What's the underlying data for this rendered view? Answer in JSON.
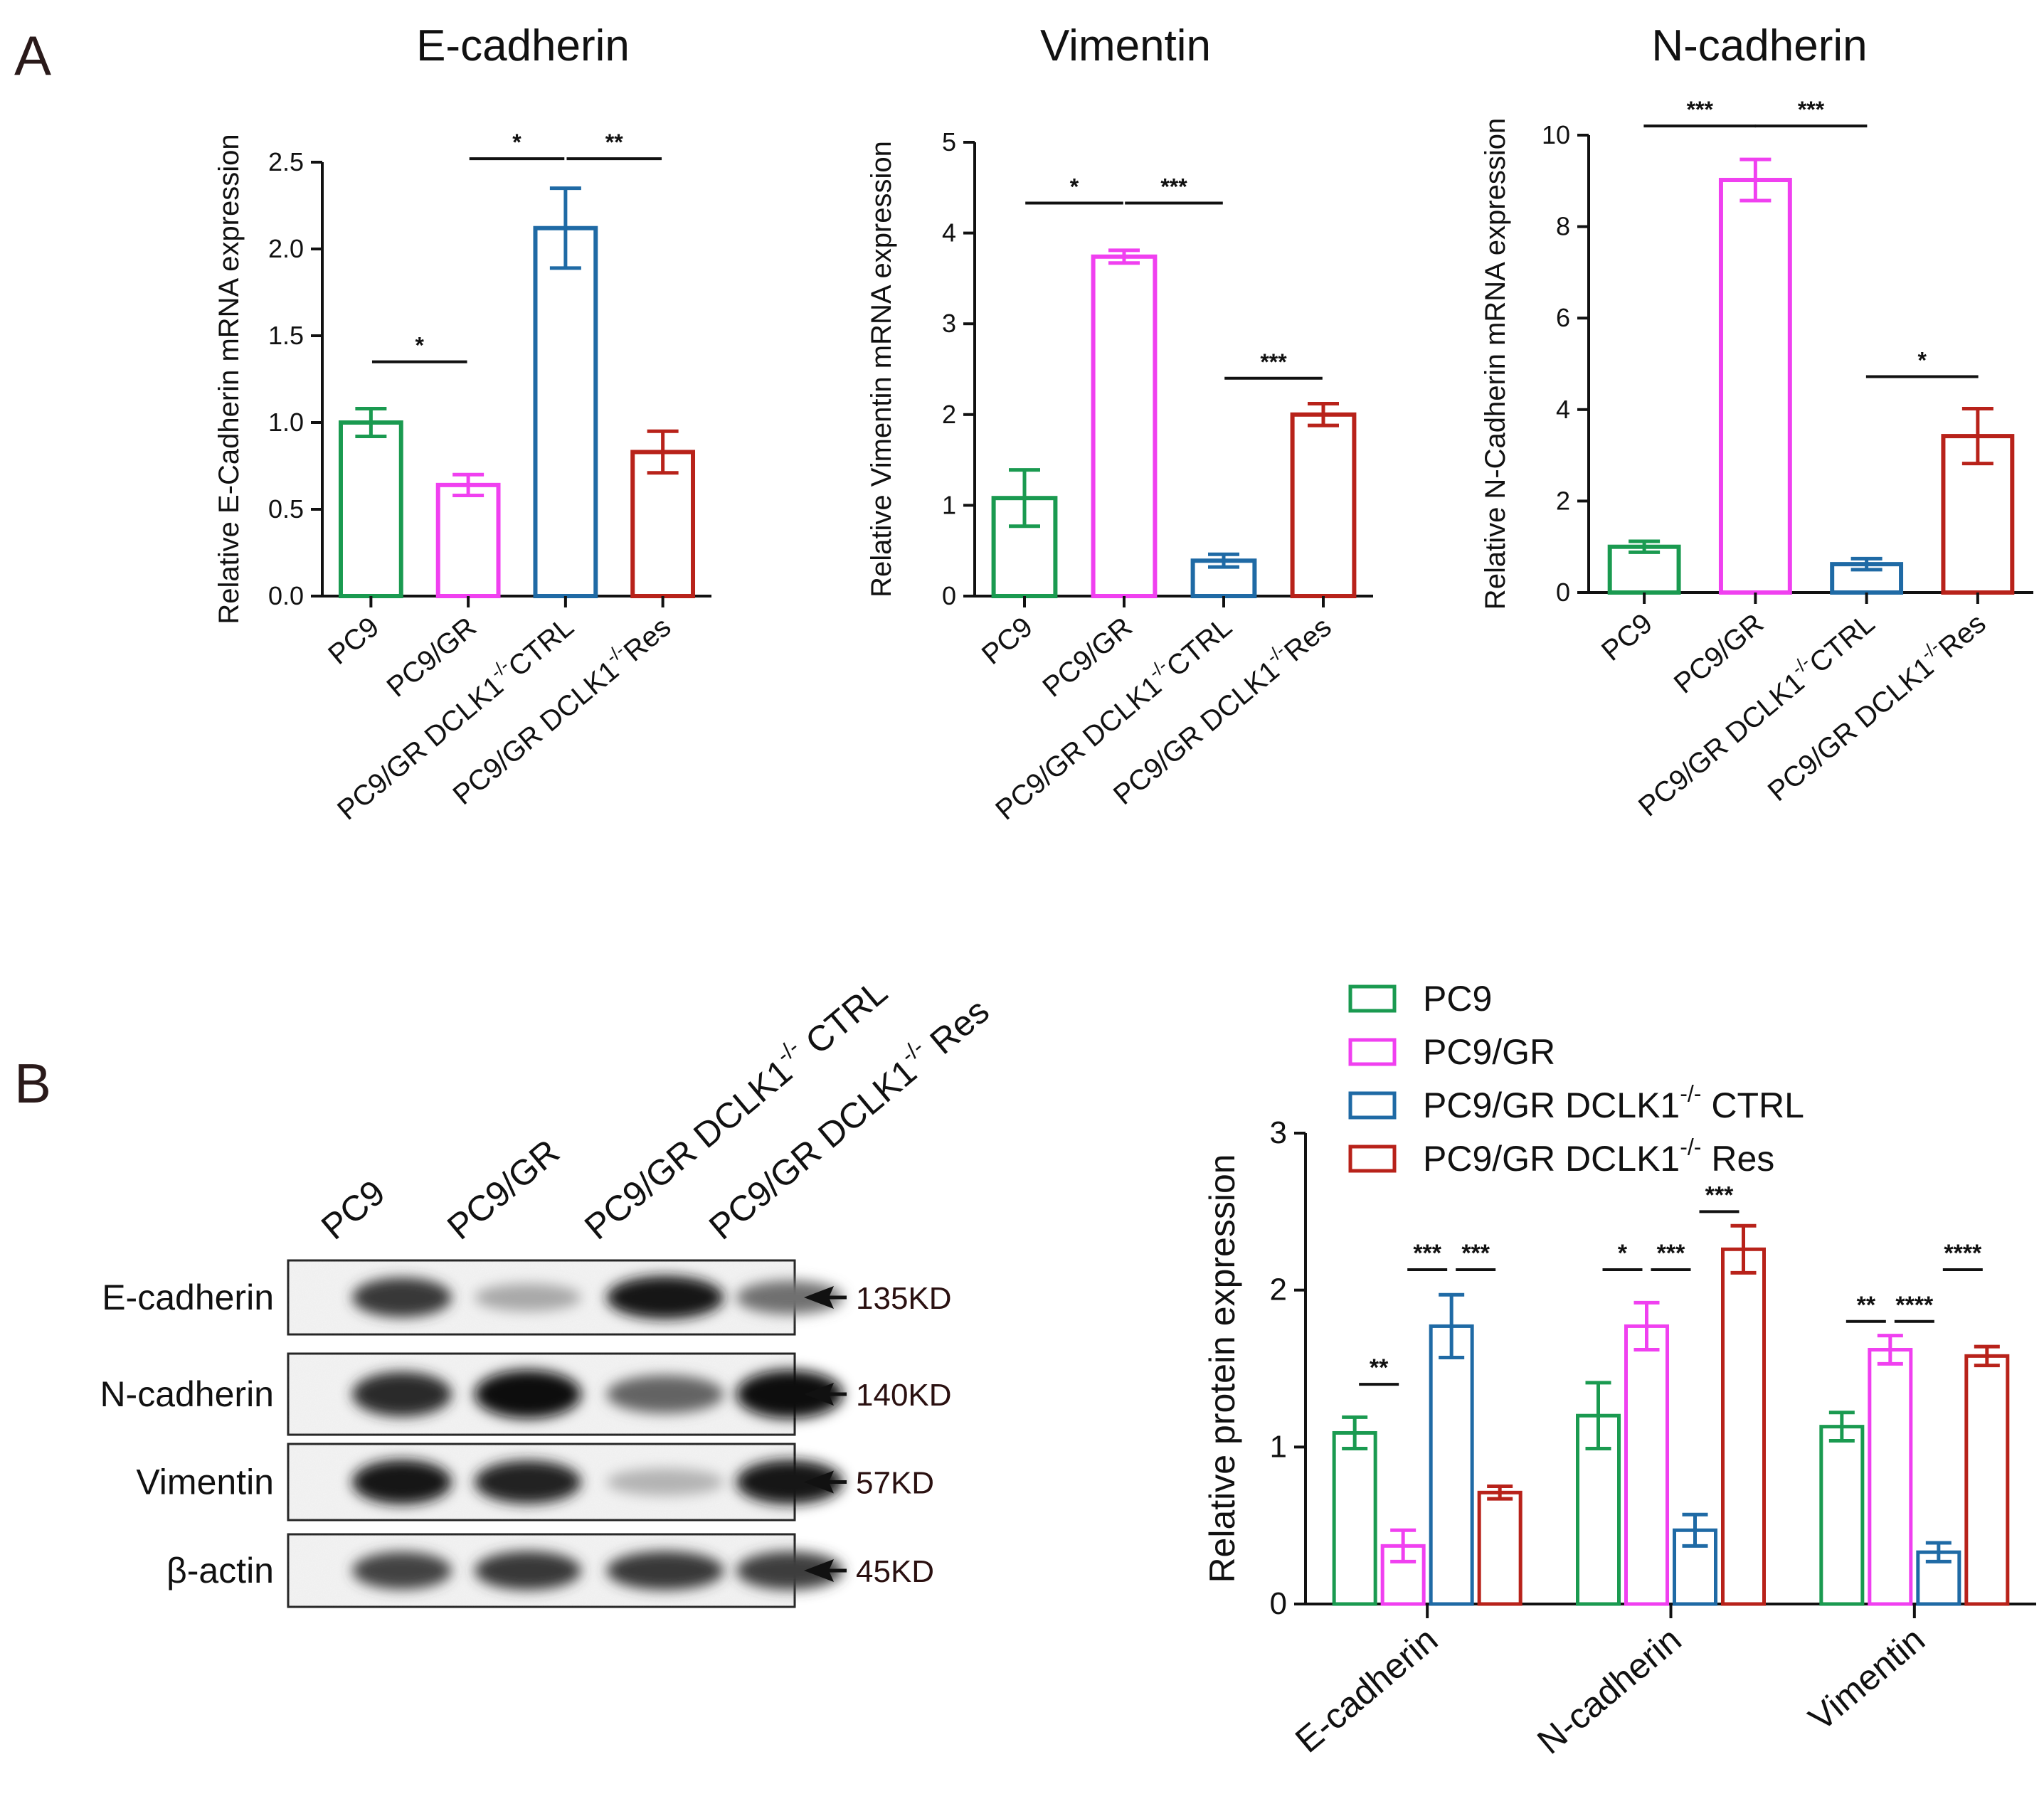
{
  "panels": {
    "a": "A",
    "b": "B"
  },
  "colors": {
    "PC9": "#1a9a50",
    "PC9/GR": "#f040f0",
    "CTRL": "#1f6aa5",
    "Res": "#b8221a",
    "text": "#111111"
  },
  "chart_data": [
    {
      "type": "bar",
      "title": "E-cadherin",
      "ylabel": "Relative E-Cadherin mRNA expression",
      "xlabel": "",
      "ylim": [
        0,
        2.5
      ],
      "yticks": [
        "0.0",
        "0.5",
        "1.0",
        "1.5",
        "2.0",
        "2.5"
      ],
      "categories": [
        "PC9",
        "PC9/GR",
        "PC9/GR DCLK1-/-CTRL",
        "PC9/GR DCLK1-/-Res"
      ],
      "category_labels": [
        {
          "main": "PC9",
          "sup": "",
          "rest": ""
        },
        {
          "main": "PC9/GR",
          "sup": "",
          "rest": ""
        },
        {
          "main": "PC9/GR DCLK1",
          "sup": "-/-",
          "rest": "CTRL"
        },
        {
          "main": "PC9/GR DCLK1",
          "sup": "-/-",
          "rest": "Res"
        }
      ],
      "values": [
        1.0,
        0.64,
        2.12,
        0.83
      ],
      "errors": [
        0.08,
        0.06,
        0.23,
        0.12
      ],
      "significance": [
        {
          "from": 0,
          "to": 1,
          "y": 1.35,
          "label": "*"
        },
        {
          "from": 1,
          "to": 2,
          "y": 2.52,
          "label": "*"
        },
        {
          "from": 2,
          "to": 3,
          "y": 2.52,
          "label": "**"
        }
      ]
    },
    {
      "type": "bar",
      "title": "Vimentin",
      "ylabel": "Relative Vimentin mRNA expression",
      "xlabel": "",
      "ylim": [
        0,
        5
      ],
      "yticks": [
        "0",
        "1",
        "2",
        "3",
        "4",
        "5"
      ],
      "categories": [
        "PC9",
        "PC9/GR",
        "PC9/GR DCLK1-/-CTRL",
        "PC9/GR DCLK1-/-Res"
      ],
      "category_labels": [
        {
          "main": "PC9",
          "sup": "",
          "rest": ""
        },
        {
          "main": "PC9/GR",
          "sup": "",
          "rest": ""
        },
        {
          "main": "PC9/GR DCLK1",
          "sup": "-/-",
          "rest": "CTRL"
        },
        {
          "main": "PC9/GR DCLK1",
          "sup": "-/-",
          "rest": "Res"
        }
      ],
      "values": [
        1.08,
        3.74,
        0.39,
        2.0
      ],
      "errors": [
        0.31,
        0.07,
        0.07,
        0.12
      ],
      "significance": [
        {
          "from": 0,
          "to": 1,
          "y": 4.33,
          "label": "*"
        },
        {
          "from": 1,
          "to": 2,
          "y": 4.33,
          "label": "***"
        },
        {
          "from": 2,
          "to": 3,
          "y": 2.4,
          "label": "***"
        }
      ]
    },
    {
      "type": "bar",
      "title": "N-cadherin",
      "ylabel": "Relative N-Cadherin mRNA expression",
      "xlabel": "",
      "ylim": [
        0,
        10
      ],
      "yticks": [
        "0",
        "2",
        "4",
        "6",
        "8",
        "10"
      ],
      "categories": [
        "PC9",
        "PC9/GR",
        "PC9/GR DCLK1-/-CTRL",
        "PC9/GR DCLK1-/-Res"
      ],
      "category_labels": [
        {
          "main": "PC9",
          "sup": "",
          "rest": ""
        },
        {
          "main": "PC9/GR",
          "sup": "",
          "rest": ""
        },
        {
          "main": "PC9/GR DCLK1",
          "sup": "-/-",
          "rest": "CTRL"
        },
        {
          "main": "PC9/GR DCLK1",
          "sup": "-/-",
          "rest": "Res"
        }
      ],
      "values": [
        1.0,
        9.02,
        0.62,
        3.42
      ],
      "errors": [
        0.12,
        0.45,
        0.12,
        0.6
      ],
      "significance": [
        {
          "from": 0,
          "to": 1,
          "y": 10.2,
          "label": "***"
        },
        {
          "from": 1,
          "to": 2,
          "y": 10.2,
          "label": "***"
        },
        {
          "from": 2,
          "to": 3,
          "y": 4.72,
          "label": "*"
        }
      ]
    },
    {
      "type": "bar",
      "title": "",
      "ylabel": "Relative protein expression",
      "xlabel": "",
      "ylim": [
        0,
        3
      ],
      "yticks": [
        "0",
        "1",
        "2",
        "3"
      ],
      "categories": [
        "E-cadherin",
        "N-cadherin",
        "Vimentin"
      ],
      "legend": [
        {
          "main": "PC9",
          "sup": "",
          "rest": ""
        },
        {
          "main": "PC9/GR",
          "sup": "",
          "rest": ""
        },
        {
          "main": "PC9/GR DCLK1",
          "sup": "-/-",
          "rest": " CTRL"
        },
        {
          "main": "PC9/GR DCLK1",
          "sup": "-/-",
          "rest": " Res"
        }
      ],
      "legend_position": "top-right",
      "series": [
        {
          "name": "PC9",
          "values": [
            1.09,
            1.2,
            1.13
          ],
          "errors": [
            0.1,
            0.21,
            0.09
          ]
        },
        {
          "name": "PC9/GR",
          "values": [
            0.37,
            1.77,
            1.62
          ],
          "errors": [
            0.1,
            0.15,
            0.09
          ]
        },
        {
          "name": "PC9/GR DCLK1-/- CTRL",
          "values": [
            1.77,
            0.47,
            0.33
          ],
          "errors": [
            0.2,
            0.1,
            0.06
          ]
        },
        {
          "name": "PC9/GR DCLK1-/- Res",
          "values": [
            0.71,
            2.26,
            1.58
          ],
          "errors": [
            0.04,
            0.15,
            0.06
          ]
        }
      ],
      "significance": [
        {
          "group": 0,
          "from": 0,
          "to": 1,
          "y": 1.4,
          "label": "**"
        },
        {
          "group": 0,
          "from": 1,
          "to": 2,
          "y": 2.13,
          "label": "***"
        },
        {
          "group": 0,
          "from": 2,
          "to": 3,
          "y": 2.13,
          "label": "***"
        },
        {
          "group": 1,
          "from": 0,
          "to": 1,
          "y": 2.13,
          "label": "*"
        },
        {
          "group": 1,
          "from": 1,
          "to": 2,
          "y": 2.13,
          "label": "***"
        },
        {
          "group": 1,
          "from": 2,
          "to": 3,
          "y": 2.5,
          "label": "***"
        },
        {
          "group": 2,
          "from": 0,
          "to": 1,
          "y": 1.8,
          "label": "**"
        },
        {
          "group": 2,
          "from": 1,
          "to": 2,
          "y": 1.8,
          "label": "****"
        },
        {
          "group": 2,
          "from": 2,
          "to": 3,
          "y": 2.13,
          "label": "****"
        }
      ]
    }
  ],
  "western_blot": {
    "columns": [
      {
        "main": "PC9",
        "sup": "",
        "rest": ""
      },
      {
        "main": "PC9/GR",
        "sup": "",
        "rest": ""
      },
      {
        "main": "PC9/GR DCLK1",
        "sup": "-/-",
        "rest": " CTRL"
      },
      {
        "main": "PC9/GR DCLK1",
        "sup": "-/-",
        "rest": " Res"
      }
    ],
    "rows": [
      {
        "label": "E-cadherin",
        "kd": "135KD",
        "intensity": [
          0.8,
          0.3,
          0.95,
          0.55
        ]
      },
      {
        "label": "N-cadherin",
        "kd": "140KD",
        "intensity": [
          0.85,
          1.0,
          0.6,
          1.0
        ]
      },
      {
        "label": "Vimentin",
        "kd": "57KD",
        "intensity": [
          0.95,
          0.9,
          0.25,
          0.95
        ]
      },
      {
        "label": "β-actin",
        "kd": "45KD",
        "intensity": [
          0.75,
          0.8,
          0.8,
          0.78
        ]
      }
    ]
  }
}
